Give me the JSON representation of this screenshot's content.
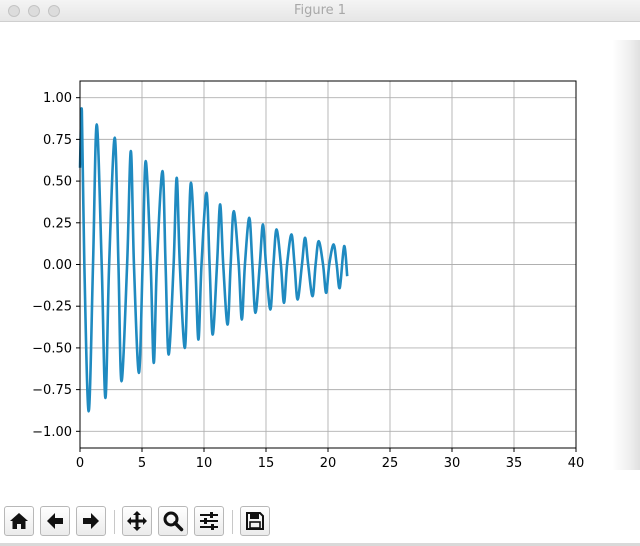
{
  "window": {
    "title": "Figure 1",
    "traffic_lights": [
      "close",
      "minimize",
      "zoom"
    ]
  },
  "colors": {
    "line": "#1f8ac0",
    "grid": "#b0b0b0",
    "axes": "#000000"
  },
  "chart_data": {
    "type": "line",
    "title": "",
    "xlabel": "",
    "ylabel": "",
    "xlim": [
      0,
      40
    ],
    "ylim": [
      -1.1,
      1.1
    ],
    "grid": true,
    "x_ticks": [
      0,
      5,
      10,
      15,
      20,
      25,
      30,
      35,
      40
    ],
    "x_tick_labels": [
      "0",
      "5",
      "10",
      "15",
      "20",
      "25",
      "30",
      "35",
      "40"
    ],
    "y_ticks": [
      1.0,
      0.75,
      0.5,
      0.25,
      0.0,
      -0.25,
      -0.5,
      -0.75,
      -1.0
    ],
    "y_tick_labels": [
      "1.00",
      "0.75",
      "0.50",
      "0.25",
      "0.00",
      "−0.25",
      "−0.50",
      "−0.75",
      "−1.00"
    ],
    "series": [
      {
        "values_description_free": true,
        "x": [
          0.0,
          0.15,
          0.35,
          0.7,
          1.05,
          1.35,
          1.75,
          2.05,
          2.35,
          2.8,
          3.1,
          3.35,
          3.8,
          4.1,
          4.35,
          4.75,
          5.05,
          5.3,
          5.7,
          5.95,
          6.2,
          6.65,
          6.9,
          7.15,
          7.55,
          7.8,
          8.05,
          8.45,
          8.7,
          8.95,
          9.3,
          9.55,
          9.8,
          10.2,
          10.45,
          10.7,
          11.05,
          11.3,
          11.55,
          11.9,
          12.15,
          12.4,
          12.8,
          13.05,
          13.3,
          13.65,
          13.9,
          14.15,
          14.5,
          14.75,
          15.0,
          15.35,
          15.6,
          15.85,
          16.2,
          16.45,
          16.7,
          17.05,
          17.3,
          17.55,
          17.9,
          18.15,
          18.4,
          18.75,
          19.0,
          19.25,
          19.6,
          19.85,
          20.1,
          20.45,
          20.7,
          20.95,
          21.3,
          21.55
        ],
        "y": [
          0.58,
          0.92,
          0.0,
          -0.88,
          0.0,
          0.84,
          0.0,
          -0.8,
          0.0,
          0.76,
          0.0,
          -0.7,
          0.0,
          0.68,
          0.0,
          -0.65,
          0.0,
          0.62,
          0.0,
          -0.59,
          0.0,
          0.56,
          0.0,
          -0.54,
          0.0,
          0.52,
          0.0,
          -0.5,
          0.0,
          0.49,
          0.0,
          -0.45,
          0.0,
          0.43,
          0.0,
          -0.42,
          0.0,
          0.36,
          0.0,
          -0.36,
          0.0,
          0.32,
          0.0,
          -0.33,
          0.0,
          0.28,
          0.0,
          -0.29,
          0.0,
          0.24,
          0.0,
          -0.27,
          0.0,
          0.21,
          0.0,
          -0.23,
          0.0,
          0.18,
          0.0,
          -0.21,
          0.0,
          0.16,
          0.0,
          -0.19,
          0.0,
          0.14,
          0.0,
          -0.17,
          0.0,
          0.12,
          0.0,
          -0.14,
          0.11,
          -0.07
        ]
      }
    ]
  },
  "toolbar": {
    "buttons": [
      {
        "name": "home-button",
        "icon": "home-icon"
      },
      {
        "name": "back-button",
        "icon": "arrow-left-icon"
      },
      {
        "name": "forward-button",
        "icon": "arrow-right-icon"
      },
      {
        "name": "pan-button",
        "icon": "move-icon"
      },
      {
        "name": "zoom-button",
        "icon": "magnifier-icon"
      },
      {
        "name": "configure-subplots-button",
        "icon": "sliders-icon"
      },
      {
        "name": "save-button",
        "icon": "floppy-disk-icon"
      }
    ]
  }
}
